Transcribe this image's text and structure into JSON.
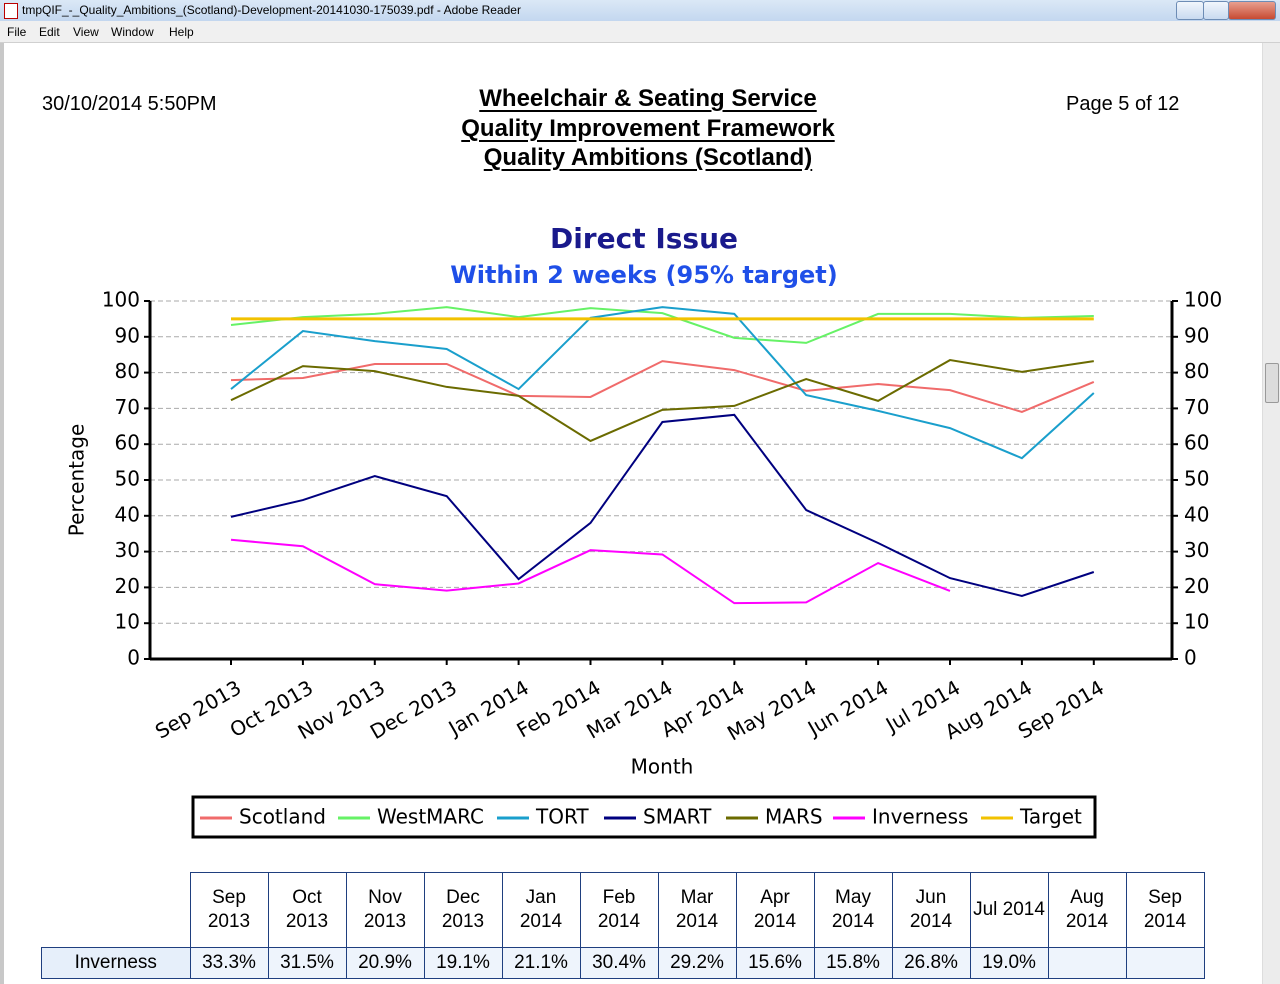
{
  "window": {
    "title": "tmpQIF_-_Quality_Ambitions_(Scotland)-Development-20141030-175039.pdf - Adobe Reader",
    "menu": [
      "File",
      "Edit",
      "View",
      "Window",
      "Help"
    ]
  },
  "header": {
    "date": "30/10/2014 5:50PM",
    "title_lines": [
      "Wheelchair & Seating Service",
      "Quality Improvement Framework",
      "Quality Ambitions (Scotland)"
    ],
    "page": "Page 5 of 12"
  },
  "chart_data": {
    "type": "line",
    "title": "Direct Issue",
    "subtitle": "Within 2 weeks (95% target)",
    "x_label": "Month",
    "y_label": "Percentage",
    "categories": [
      "Sep 2013",
      "Oct 2013",
      "Nov 2013",
      "Dec 2013",
      "Jan 2014",
      "Feb 2014",
      "Mar 2014",
      "Apr 2014",
      "May 2014",
      "Jun 2014",
      "Jul 2014",
      "Aug 2014",
      "Sep 2014"
    ],
    "series": [
      {
        "name": "Scotland",
        "color": "#f06b6b",
        "values": [
          77.9,
          78.5,
          82.4,
          82.4,
          73.5,
          73.2,
          83.2,
          80.7,
          74.9,
          76.8,
          75.1,
          69.0,
          77.4
        ]
      },
      {
        "name": "WestMARC",
        "color": "#66f266",
        "values": [
          93.3,
          95.5,
          96.4,
          98.3,
          95.5,
          98.0,
          96.6,
          89.7,
          88.3,
          96.4,
          96.4,
          95.3,
          95.8
        ]
      },
      {
        "name": "TORT",
        "color": "#1a9fcc",
        "values": [
          75.4,
          91.6,
          88.8,
          86.6,
          75.4,
          95.3,
          98.3,
          96.4,
          73.7,
          69.3,
          64.5,
          56.1,
          74.3
        ]
      },
      {
        "name": "SMART",
        "color": "#00007f",
        "values": [
          39.7,
          44.4,
          51.1,
          45.5,
          22.3,
          38.0,
          66.2,
          68.2,
          41.6,
          32.4,
          22.6,
          17.6,
          24.3
        ]
      },
      {
        "name": "MARS",
        "color": "#6b6b00",
        "values": [
          72.3,
          81.8,
          80.4,
          76.0,
          73.5,
          60.9,
          69.6,
          70.7,
          78.2,
          72.1,
          83.5,
          80.2,
          83.2
        ]
      },
      {
        "name": "Inverness",
        "color": "#ff00ff",
        "values": [
          33.3,
          31.5,
          20.9,
          19.1,
          21.1,
          30.4,
          29.2,
          15.6,
          15.8,
          26.8,
          19.0,
          null,
          null
        ]
      },
      {
        "name": "Target",
        "color": "#f2c200",
        "values": [
          95,
          95,
          95,
          95,
          95,
          95,
          95,
          95,
          95,
          95,
          95,
          95,
          95
        ]
      }
    ],
    "ylim": [
      0,
      100
    ],
    "yticks": [
      0,
      10,
      20,
      30,
      40,
      50,
      60,
      70,
      80,
      90,
      100
    ],
    "y2lim": [
      0,
      100
    ],
    "y2ticks": [
      0,
      10,
      20,
      30,
      40,
      50,
      60,
      70,
      80,
      90,
      100
    ],
    "grid": true,
    "legend": "bottom"
  },
  "table": {
    "rows": [
      {
        "label": "Inverness",
        "cells": [
          "33.3%",
          "31.5%",
          "20.9%",
          "19.1%",
          "21.1%",
          "30.4%",
          "29.2%",
          "15.6%",
          "15.8%",
          "26.8%",
          "19.0%",
          null,
          null
        ]
      }
    ]
  }
}
